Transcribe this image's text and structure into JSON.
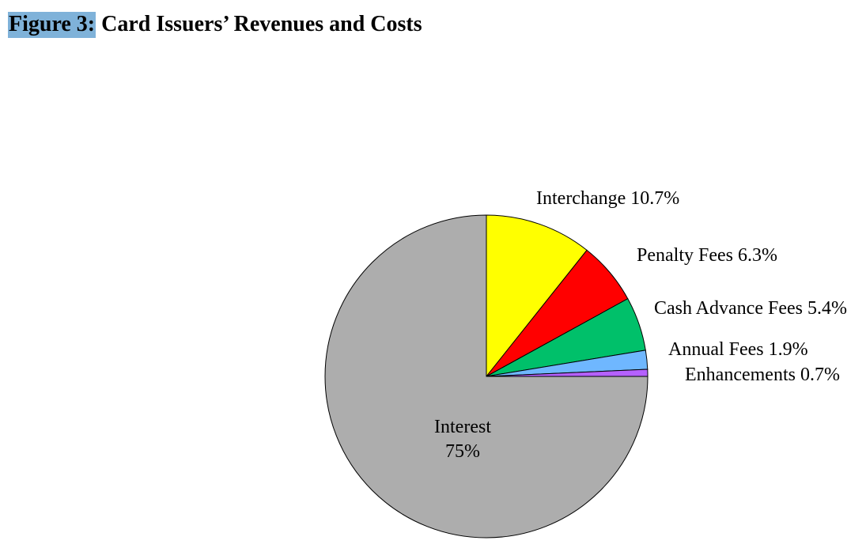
{
  "title": {
    "label": "Figure 3:",
    "text": "Card Issuers’ Revenues and Costs"
  },
  "chart_data": {
    "type": "pie",
    "title": "Card Issuers’ Revenues and Costs",
    "slices": [
      {
        "name": "Interchange",
        "value": 10.7,
        "label": "Interchange 10.7%",
        "color": "#ffff00"
      },
      {
        "name": "Penalty Fees",
        "value": 6.3,
        "label": "Penalty Fees 6.3%",
        "color": "#ff0000"
      },
      {
        "name": "Cash Advance Fees",
        "value": 5.4,
        "label": "Cash Advance Fees 5.4%",
        "color": "#00c06a"
      },
      {
        "name": "Annual Fees",
        "value": 1.9,
        "label": "Annual Fees 1.9%",
        "color": "#6fb7ff"
      },
      {
        "name": "Enhancements",
        "value": 0.7,
        "label": "Enhancements 0.7%",
        "color": "#b561ff"
      },
      {
        "name": "Interest",
        "value": 75,
        "label_lines": [
          "Interest",
          "75%"
        ],
        "color": "#adadad"
      }
    ]
  }
}
